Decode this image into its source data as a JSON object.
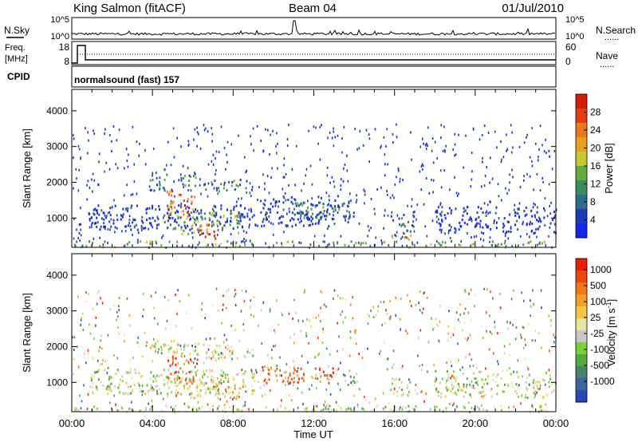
{
  "header": {
    "station": "King Salmon (fitACF)",
    "beam": "Beam 04",
    "date": "01/Jul/2010"
  },
  "params": {
    "nsky_label": "N.Sky",
    "freq_label_line1": "Freq.",
    "freq_label_line2": "[MHz]",
    "cpid_label": "CPID",
    "nsearch_label": "N.Search",
    "nave_label": "Nave",
    "dots": "......",
    "nsky_ticks": [
      "10^5",
      "10^0"
    ],
    "nsearch_ticks": [
      "10^5",
      "10^0"
    ],
    "freq_ticks": [
      "18",
      "8"
    ],
    "nave_ticks": [
      "60",
      "0"
    ],
    "cpid_text": "normalsound (fast) 157"
  },
  "chart_data": [
    {
      "type": "heatmap",
      "name": "power",
      "xlabel": "Time UT",
      "ylabel": "Slant Range [km]",
      "x_range_hours": [
        0,
        24
      ],
      "x_ticks": [
        "00:00",
        "04:00",
        "08:00",
        "12:00",
        "16:00",
        "20:00",
        "00:00"
      ],
      "ylim": [
        180,
        4600
      ],
      "y_ticks": [
        1000,
        2000,
        3000,
        4000
      ],
      "colorbar": {
        "label": "Power [dB]",
        "ticks": [
          "4",
          "8",
          "12",
          "16",
          "20",
          "24",
          "28"
        ],
        "colors": [
          "#1428e6",
          "#1e3cb4",
          "#2d6e8c",
          "#3c8c5a",
          "#64aa3c",
          "#c8c832",
          "#e6a01e",
          "#eb781e",
          "#e63c14",
          "#d21e0a"
        ]
      },
      "regions": [
        {
          "t0": 0.8,
          "t1": 9.1,
          "r0": 700,
          "r1": 1400,
          "level": 0.12
        },
        {
          "t0": 5.0,
          "t1": 8.3,
          "r0": 550,
          "r1": 1200,
          "level": 0.45
        },
        {
          "t0": 6.2,
          "t1": 7.3,
          "r0": 450,
          "r1": 850,
          "level": 0.9
        },
        {
          "t0": 4.7,
          "t1": 6.2,
          "r0": 1050,
          "r1": 1800,
          "level": 0.75
        },
        {
          "t0": 3.8,
          "t1": 6.3,
          "r0": 1800,
          "r1": 2250,
          "level": 0.3
        },
        {
          "t0": 6.5,
          "t1": 9.0,
          "r0": 1700,
          "r1": 2100,
          "level": 0.28
        },
        {
          "t0": 9.3,
          "t1": 14.0,
          "r0": 800,
          "r1": 1650,
          "level": 0.12
        },
        {
          "t0": 11.0,
          "t1": 13.8,
          "r0": 1000,
          "r1": 1500,
          "level": 0.3
        },
        {
          "t0": 15.5,
          "t1": 17.0,
          "r0": 650,
          "r1": 1150,
          "level": 0.2
        },
        {
          "t0": 15.7,
          "t1": 17.0,
          "r0": 420,
          "r1": 600,
          "level": 0.62
        },
        {
          "t0": 18.0,
          "t1": 24.0,
          "r0": 600,
          "r1": 1350,
          "level": 0.1
        },
        {
          "t0": 0.0,
          "t1": 24.0,
          "r0": 200,
          "r1": 380,
          "level": 0.4
        }
      ]
    },
    {
      "type": "heatmap",
      "name": "velocity",
      "xlabel": "Time UT",
      "ylabel": "Slant Range [km]",
      "x_range_hours": [
        0,
        24
      ],
      "x_ticks": [
        "00:00",
        "04:00",
        "08:00",
        "12:00",
        "16:00",
        "20:00",
        "00:00"
      ],
      "ylim": [
        180,
        4600
      ],
      "y_ticks": [
        1000,
        2000,
        3000,
        4000
      ],
      "colorbar": {
        "label": "Velocity [m s^-1]",
        "ticks": [
          "1000",
          "500",
          "100",
          "25",
          "-25",
          "-100",
          "-500",
          "-1000"
        ],
        "colors": [
          "#2846b4",
          "#3c64a0",
          "#46826e",
          "#50aa3c",
          "#78d232",
          "#c8c8c8",
          "#e6e6a0",
          "#f0c846",
          "#f0a028",
          "#f07814",
          "#eb4614",
          "#e61e0a"
        ]
      },
      "regions": [
        {
          "t0": 0.8,
          "t1": 9.1,
          "r0": 700,
          "r1": 1400,
          "level": 0.45
        },
        {
          "t0": 5.0,
          "t1": 8.3,
          "r0": 550,
          "r1": 1200,
          "level": 0.65
        },
        {
          "t0": 4.7,
          "t1": 6.2,
          "r0": 1050,
          "r1": 1800,
          "level": 0.85
        },
        {
          "t0": 3.8,
          "t1": 6.3,
          "r0": 1800,
          "r1": 2250,
          "level": 0.5
        },
        {
          "t0": 6.5,
          "t1": 9.0,
          "r0": 1700,
          "r1": 2100,
          "level": 0.5
        },
        {
          "t0": 9.3,
          "t1": 13.0,
          "r0": 1000,
          "r1": 1500,
          "level": 0.8
        },
        {
          "t0": 13.0,
          "t1": 14.0,
          "r0": 900,
          "r1": 1300,
          "level": 0.25
        },
        {
          "t0": 15.5,
          "t1": 17.0,
          "r0": 650,
          "r1": 1150,
          "level": 0.45
        },
        {
          "t0": 18.0,
          "t1": 24.0,
          "r0": 600,
          "r1": 1350,
          "level": 0.45
        },
        {
          "t0": 0.0,
          "t1": 24.0,
          "r0": 200,
          "r1": 380,
          "level": 0.45
        }
      ]
    }
  ]
}
